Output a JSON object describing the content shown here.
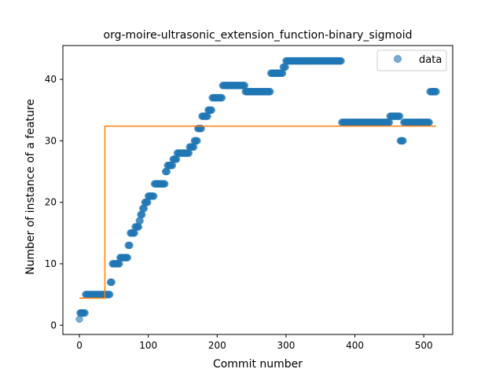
{
  "chart_data": {
    "type": "scatter",
    "title": "org-moire-ultrasonic_extension_function-binary_sigmoid",
    "xlabel": "Commit number",
    "ylabel": "Number of instance of a feature",
    "xlim": [
      -24,
      542
    ],
    "ylim": [
      -1.5,
      45.5
    ],
    "xticks": [
      0,
      100,
      200,
      300,
      400,
      500
    ],
    "yticks": [
      0,
      10,
      20,
      30,
      40
    ],
    "grid": false,
    "legend": {
      "position": "top-right",
      "entries": [
        "data"
      ]
    },
    "series": [
      {
        "name": "data",
        "kind": "scatter",
        "color": "#1f77b4",
        "alpha": 0.6,
        "segments": [
          {
            "x_start": 0,
            "x_end": 0,
            "y": 1
          },
          {
            "x_start": 1,
            "x_end": 8,
            "y": 2
          },
          {
            "x_start": 9,
            "x_end": 44,
            "y": 5
          },
          {
            "x_start": 45,
            "x_end": 47,
            "y": 7
          },
          {
            "x_start": 48,
            "x_end": 58,
            "y": 10
          },
          {
            "x_start": 59,
            "x_end": 70,
            "y": 11
          },
          {
            "x_start": 71,
            "x_end": 73,
            "y": 13
          },
          {
            "x_start": 74,
            "x_end": 80,
            "y": 15
          },
          {
            "x_start": 81,
            "x_end": 86,
            "y": 16
          },
          {
            "x_start": 87,
            "x_end": 88,
            "y": 17
          },
          {
            "x_start": 89,
            "x_end": 91,
            "y": 18
          },
          {
            "x_start": 92,
            "x_end": 94,
            "y": 19
          },
          {
            "x_start": 95,
            "x_end": 99,
            "y": 20
          },
          {
            "x_start": 100,
            "x_end": 108,
            "y": 21
          },
          {
            "x_start": 109,
            "x_end": 124,
            "y": 23
          },
          {
            "x_start": 125,
            "x_end": 127,
            "y": 25
          },
          {
            "x_start": 128,
            "x_end": 135,
            "y": 26
          },
          {
            "x_start": 136,
            "x_end": 141,
            "y": 27
          },
          {
            "x_start": 142,
            "x_end": 159,
            "y": 28
          },
          {
            "x_start": 160,
            "x_end": 166,
            "y": 29
          },
          {
            "x_start": 167,
            "x_end": 171,
            "y": 30
          },
          {
            "x_start": 172,
            "x_end": 177,
            "y": 32
          },
          {
            "x_start": 178,
            "x_end": 186,
            "y": 34
          },
          {
            "x_start": 187,
            "x_end": 192,
            "y": 35
          },
          {
            "x_start": 193,
            "x_end": 207,
            "y": 37
          },
          {
            "x_start": 208,
            "x_end": 240,
            "y": 39
          },
          {
            "x_start": 241,
            "x_end": 277,
            "y": 38
          },
          {
            "x_start": 278,
            "x_end": 295,
            "y": 41
          },
          {
            "x_start": 296,
            "x_end": 299,
            "y": 42
          },
          {
            "x_start": 300,
            "x_end": 380,
            "y": 43
          },
          {
            "x_start": 381,
            "x_end": 450,
            "y": 33
          },
          {
            "x_start": 451,
            "x_end": 465,
            "y": 34
          },
          {
            "x_start": 466,
            "x_end": 470,
            "y": 30
          },
          {
            "x_start": 471,
            "x_end": 508,
            "y": 33
          },
          {
            "x_start": 509,
            "x_end": 518,
            "y": 38
          }
        ]
      },
      {
        "kind": "line",
        "color": "#ff7f0e",
        "x": [
          0,
          37,
          37,
          518
        ],
        "y": [
          4.4,
          4.4,
          32.4,
          32.4
        ]
      }
    ]
  }
}
